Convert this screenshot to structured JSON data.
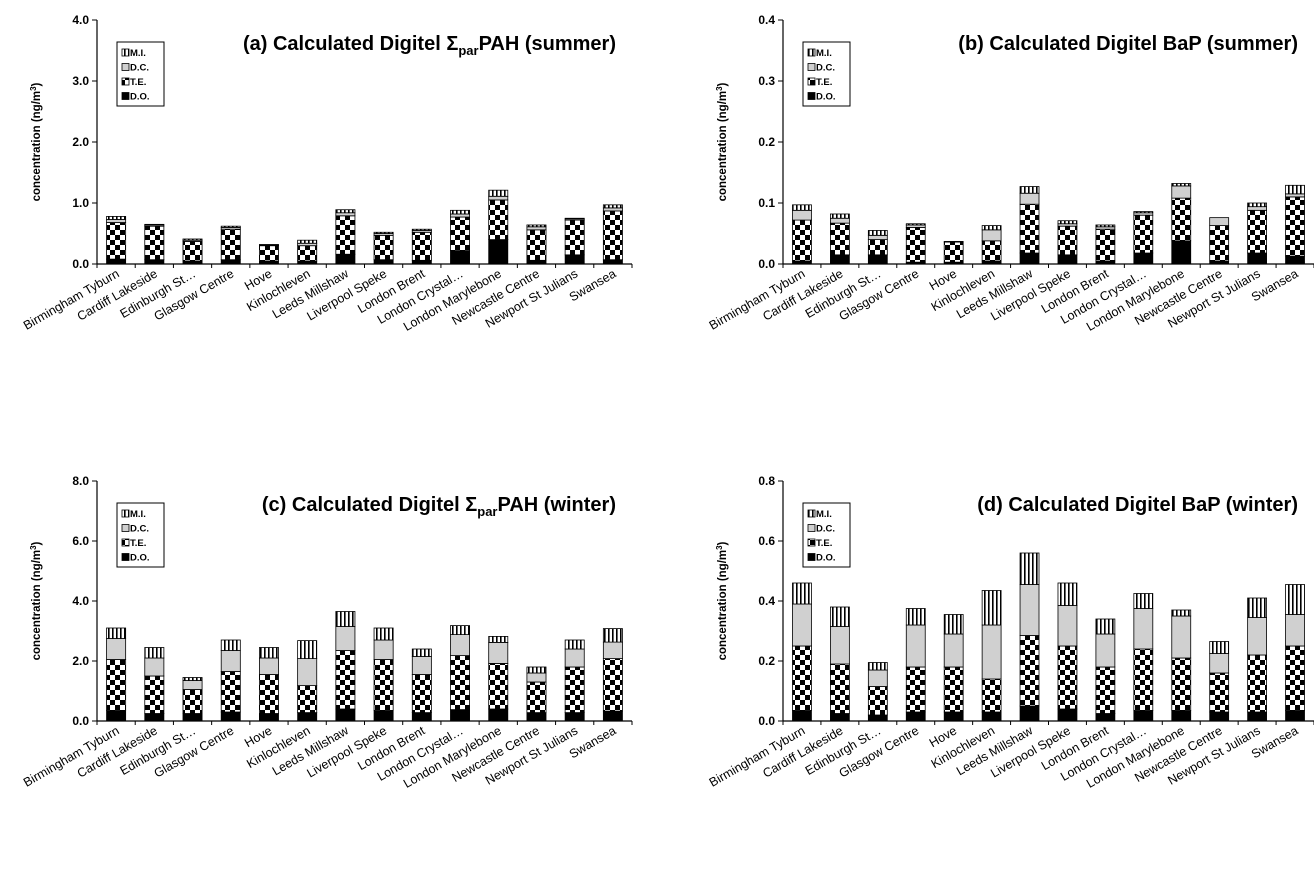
{
  "legend_labels": [
    "M.I.",
    "D.C.",
    "T.E.",
    "D.O."
  ],
  "chart_data": [
    {
      "type": "bar",
      "stacked": true,
      "title": "(a) Calculated Digitel ΣparPAH (summer)",
      "title_parts": [
        "(a) Calculated Digitel Σ",
        "par",
        "PAH (summer)"
      ],
      "ylabel": "concentration (ng/m³)",
      "ylabel_parts": [
        "concentration (ng/m",
        "3",
        ")"
      ],
      "ylim": [
        0,
        4
      ],
      "yticks": [
        "0.0",
        "1.0",
        "2.0",
        "3.0",
        "4.0"
      ],
      "legend_position": "top-left",
      "categories": [
        "Birmingham Tyburn",
        "Cardiff Lakeside",
        "Edinburgh St…",
        "Glasgow Centre",
        "Hove",
        "Kinlochleven",
        "Leeds Millshaw",
        "Liverpool Speke",
        "London Brent",
        "London Crystal…",
        "London Marylebone",
        "Newcastle Centre",
        "Newport St Julians",
        "Swansea"
      ],
      "series": [
        {
          "name": "D.O.",
          "pattern": "solid",
          "values": [
            0.08,
            0.07,
            0.05,
            0.07,
            0.05,
            0.05,
            0.16,
            0.07,
            0.06,
            0.22,
            0.4,
            0.06,
            0.15,
            0.07
          ]
        },
        {
          "name": "T.E.",
          "pattern": "checker",
          "values": [
            0.6,
            0.55,
            0.32,
            0.5,
            0.25,
            0.25,
            0.63,
            0.4,
            0.46,
            0.55,
            0.65,
            0.5,
            0.57,
            0.8
          ]
        },
        {
          "name": "D.C.",
          "pattern": "light",
          "values": [
            0.05,
            0.02,
            0.02,
            0.03,
            0.01,
            0.04,
            0.05,
            0.03,
            0.03,
            0.05,
            0.06,
            0.05,
            0.02,
            0.05
          ]
        },
        {
          "name": "M.I.",
          "pattern": "vlines",
          "values": [
            0.05,
            0.01,
            0.02,
            0.02,
            0.01,
            0.05,
            0.05,
            0.02,
            0.02,
            0.06,
            0.1,
            0.03,
            0.01,
            0.05
          ]
        }
      ]
    },
    {
      "type": "bar",
      "stacked": true,
      "title": "(b) Calculated Digitel BaP (summer)",
      "title_parts": [
        "(b) Calculated Digitel BaP (summer)",
        "",
        ""
      ],
      "ylabel": "concentration (ng/m³)",
      "ylabel_parts": [
        "concentration (ng/m",
        "3",
        ")"
      ],
      "ylim": [
        0,
        0.4
      ],
      "yticks": [
        "0.0",
        "0.1",
        "0.2",
        "0.3",
        "0.4"
      ],
      "legend_position": "top-left",
      "categories": [
        "Birmingham Tyburn",
        "Cardiff Lakeside",
        "Edinburgh St…",
        "Glasgow Centre",
        "Hove",
        "Kinlochleven",
        "Leeds Millshaw",
        "Liverpool Speke",
        "London Brent",
        "London Crystal…",
        "London Marylebone",
        "Newcastle Centre",
        "Newport St Julians",
        "Swansea"
      ],
      "series": [
        {
          "name": "D.O.",
          "pattern": "solid",
          "values": [
            0.005,
            0.015,
            0.015,
            0.003,
            0.003,
            0.005,
            0.018,
            0.015,
            0.005,
            0.018,
            0.038,
            0.005,
            0.018,
            0.013
          ]
        },
        {
          "name": "T.E.",
          "pattern": "checker",
          "values": [
            0.067,
            0.052,
            0.025,
            0.057,
            0.033,
            0.033,
            0.08,
            0.047,
            0.052,
            0.062,
            0.07,
            0.058,
            0.07,
            0.097
          ]
        },
        {
          "name": "D.C.",
          "pattern": "light",
          "values": [
            0.016,
            0.008,
            0.007,
            0.004,
            0.0,
            0.018,
            0.018,
            0.004,
            0.004,
            0.004,
            0.02,
            0.013,
            0.006,
            0.005
          ]
        },
        {
          "name": "M.I.",
          "pattern": "vlines",
          "values": [
            0.009,
            0.007,
            0.008,
            0.002,
            0.001,
            0.007,
            0.011,
            0.005,
            0.003,
            0.002,
            0.004,
            0.0,
            0.006,
            0.014
          ]
        }
      ]
    },
    {
      "type": "bar",
      "stacked": true,
      "title": "(c) Calculated Digitel ΣparPAH (winter)",
      "title_parts": [
        "(c) Calculated Digitel Σ",
        "par",
        "PAH (winter)"
      ],
      "ylabel": "concentration (ng/m³)",
      "ylabel_parts": [
        "concentration (ng/m",
        "3",
        ")"
      ],
      "ylim": [
        0,
        8
      ],
      "yticks": [
        "0.0",
        "2.0",
        "4.0",
        "6.0",
        "8.0"
      ],
      "legend_position": "top-left",
      "categories": [
        "Birmingham Tyburn",
        "Cardiff Lakeside",
        "Edinburgh St…",
        "Glasgow Centre",
        "Hove",
        "Kinlochleven",
        "Leeds Millshaw",
        "Liverpool Speke",
        "London Brent",
        "London Crystal…",
        "London Marylebone",
        "Newcastle Centre",
        "Newport St Julians",
        "Swansea"
      ],
      "series": [
        {
          "name": "D.O.",
          "pattern": "solid",
          "values": [
            0.35,
            0.25,
            0.25,
            0.3,
            0.25,
            0.28,
            0.4,
            0.35,
            0.28,
            0.38,
            0.4,
            0.28,
            0.28,
            0.33
          ]
        },
        {
          "name": "T.E.",
          "pattern": "checker",
          "values": [
            1.7,
            1.25,
            0.8,
            1.35,
            1.3,
            0.9,
            1.95,
            1.7,
            1.27,
            1.8,
            1.52,
            1.02,
            1.52,
            1.75
          ]
        },
        {
          "name": "D.C.",
          "pattern": "light",
          "values": [
            0.7,
            0.6,
            0.3,
            0.7,
            0.55,
            0.9,
            0.8,
            0.65,
            0.6,
            0.7,
            0.7,
            0.3,
            0.6,
            0.55
          ]
        },
        {
          "name": "M.I.",
          "pattern": "vlines",
          "values": [
            0.35,
            0.35,
            0.1,
            0.35,
            0.35,
            0.6,
            0.5,
            0.4,
            0.25,
            0.3,
            0.2,
            0.2,
            0.3,
            0.45
          ]
        }
      ]
    },
    {
      "type": "bar",
      "stacked": true,
      "title": "(d) Calculated Digitel BaP (winter)",
      "title_parts": [
        "(d) Calculated Digitel BaP (winter)",
        "",
        ""
      ],
      "ylabel": "concentration (ng/m³)",
      "ylabel_parts": [
        "concentration (ng/m",
        "3",
        ")"
      ],
      "ylim": [
        0,
        0.8
      ],
      "yticks": [
        "0.0",
        "0.2",
        "0.4",
        "0.6",
        "0.8"
      ],
      "legend_position": "top-left",
      "categories": [
        "Birmingham Tyburn",
        "Cardiff Lakeside",
        "Edinburgh St…",
        "Glasgow Centre",
        "Hove",
        "Kinlochleven",
        "Leeds Millshaw",
        "Liverpool Speke",
        "London Brent",
        "London Crystal…",
        "London Marylebone",
        "Newcastle Centre",
        "Newport St Julians",
        "Swansea"
      ],
      "series": [
        {
          "name": "D.O.",
          "pattern": "solid",
          "values": [
            0.035,
            0.025,
            0.02,
            0.03,
            0.03,
            0.03,
            0.05,
            0.04,
            0.025,
            0.035,
            0.035,
            0.03,
            0.03,
            0.035
          ]
        },
        {
          "name": "T.E.",
          "pattern": "checker",
          "values": [
            0.215,
            0.165,
            0.095,
            0.15,
            0.15,
            0.11,
            0.235,
            0.21,
            0.155,
            0.205,
            0.175,
            0.13,
            0.19,
            0.215
          ]
        },
        {
          "name": "D.C.",
          "pattern": "light",
          "values": [
            0.14,
            0.125,
            0.055,
            0.14,
            0.11,
            0.18,
            0.17,
            0.135,
            0.11,
            0.135,
            0.14,
            0.065,
            0.125,
            0.105
          ]
        },
        {
          "name": "M.I.",
          "pattern": "vlines",
          "values": [
            0.07,
            0.065,
            0.025,
            0.055,
            0.065,
            0.115,
            0.105,
            0.075,
            0.05,
            0.05,
            0.02,
            0.04,
            0.065,
            0.1
          ]
        }
      ]
    }
  ]
}
